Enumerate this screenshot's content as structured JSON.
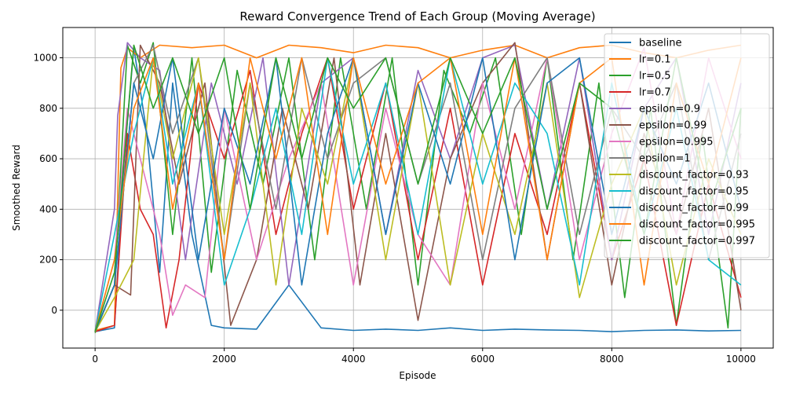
{
  "chart_data": {
    "type": "line",
    "title": "Reward Convergence Trend of Each Group (Moving Average)",
    "xlabel": "Episode",
    "ylabel": "Smoothed Reward",
    "xlim": [
      -500,
      10500
    ],
    "ylim": [
      -150,
      1120
    ],
    "xticks": [
      0,
      2000,
      4000,
      6000,
      8000,
      10000
    ],
    "yticks": [
      0,
      200,
      400,
      600,
      800,
      1000
    ],
    "grid": true,
    "legend_position": "top-right",
    "series": [
      {
        "name": "baseline",
        "color": "#1f77b4",
        "x": [
          0,
          300,
          450,
          600,
          800,
          1000,
          1200,
          1500,
          1800,
          2000,
          2500,
          3000,
          3500,
          4000,
          4500,
          5000,
          5500,
          6000,
          6500,
          7000,
          7500,
          8000,
          8500,
          9000,
          9500,
          10000
        ],
        "values": [
          -85,
          -70,
          600,
          1040,
          700,
          150,
          900,
          300,
          -60,
          -70,
          -75,
          100,
          -70,
          -80,
          -75,
          -80,
          -70,
          -80,
          -75,
          -78,
          -80,
          -85,
          -80,
          -78,
          -82,
          -80
        ]
      },
      {
        "name": "lr=0.1",
        "color": "#ff7f0e",
        "x": [
          0,
          300,
          400,
          500,
          700,
          1000,
          1500,
          2000,
          2500,
          3000,
          3500,
          4000,
          4500,
          5000,
          5500,
          6000,
          6500,
          7000,
          7500,
          8000,
          8500,
          9000,
          9500,
          10000
        ],
        "values": [
          -80,
          -60,
          960,
          1040,
          1000,
          1050,
          1040,
          1050,
          1000,
          1050,
          1040,
          1020,
          1050,
          1040,
          1000,
          1030,
          1050,
          1000,
          1040,
          1050,
          1020,
          1000,
          1030,
          1050
        ]
      },
      {
        "name": "lr=0.5",
        "color": "#2ca02c",
        "x": [
          0,
          300,
          500,
          700,
          900,
          1200,
          1500,
          1800,
          2200,
          2600,
          3000,
          3400,
          3800,
          4200,
          4600,
          5000,
          5400,
          5800,
          6200,
          6600,
          7000,
          7400,
          7800,
          8200,
          8600,
          9000,
          9400,
          9800,
          10000
        ],
        "values": [
          -90,
          100,
          1050,
          900,
          1060,
          300,
          1000,
          150,
          950,
          500,
          1000,
          200,
          1000,
          400,
          1000,
          100,
          950,
          700,
          1000,
          300,
          1000,
          200,
          900,
          50,
          800,
          -60,
          700,
          -70,
          800
        ]
      },
      {
        "name": "lr=0.7",
        "color": "#d62728",
        "x": [
          0,
          300,
          500,
          700,
          900,
          1100,
          1300,
          1600,
          2000,
          2400,
          2800,
          3200,
          3600,
          4000,
          4500,
          5000,
          5500,
          6000,
          6500,
          7000,
          7500,
          8000,
          8500,
          9000,
          9500,
          10000
        ],
        "values": [
          -85,
          -60,
          700,
          400,
          300,
          -70,
          200,
          900,
          600,
          950,
          300,
          700,
          1000,
          400,
          900,
          200,
          800,
          100,
          700,
          300,
          900,
          200,
          600,
          -60,
          500,
          50
        ]
      },
      {
        "name": "epsilon=0.9",
        "color": "#9467bd",
        "x": [
          0,
          300,
          350,
          500,
          700,
          1000,
          1400,
          1800,
          2200,
          2600,
          3000,
          3500,
          4000,
          4500,
          5000,
          5500,
          6000,
          6500,
          7000,
          7500,
          8000,
          8500,
          9000,
          9500,
          10000
        ],
        "values": [
          -85,
          400,
          770,
          1060,
          1000,
          950,
          200,
          900,
          500,
          1000,
          100,
          900,
          1000,
          300,
          950,
          600,
          1000,
          1050,
          400,
          1000,
          200,
          800,
          1000,
          300,
          900
        ]
      },
      {
        "name": "epsilon=0.99",
        "color": "#8c564b",
        "x": [
          0,
          300,
          550,
          700,
          1000,
          1300,
          1700,
          2100,
          2500,
          2900,
          3300,
          3700,
          4100,
          4500,
          5000,
          5500,
          6000,
          6500,
          7000,
          7500,
          8000,
          8500,
          9000,
          9500,
          10000
        ],
        "values": [
          -85,
          100,
          60,
          1050,
          900,
          500,
          900,
          -60,
          200,
          800,
          400,
          1000,
          100,
          700,
          -40,
          600,
          900,
          1060,
          200,
          900,
          100,
          700,
          300,
          800,
          0
        ]
      },
      {
        "name": "epsilon=0.995",
        "color": "#e377c2",
        "x": [
          0,
          300,
          500,
          700,
          1000,
          1200,
          1400,
          1700,
          2000,
          2500,
          3000,
          3500,
          4000,
          4500,
          5000,
          5500,
          6000,
          6500,
          7000,
          7500,
          8000,
          8500,
          9000,
          9500,
          10000
        ],
        "values": [
          -85,
          200,
          800,
          600,
          300,
          -20,
          100,
          50,
          800,
          200,
          600,
          900,
          100,
          800,
          300,
          100,
          900,
          400,
          1000,
          200,
          700,
          1040,
          300,
          1000,
          600
        ]
      },
      {
        "name": "epsilon=1",
        "color": "#7f7f7f",
        "x": [
          0,
          300,
          600,
          900,
          1200,
          1600,
          2000,
          2400,
          2800,
          3200,
          3600,
          4000,
          4500,
          5000,
          5500,
          6000,
          6500,
          7000,
          7500,
          8000,
          8500,
          9000,
          9500,
          10000
        ],
        "values": [
          -85,
          100,
          900,
          1050,
          700,
          1000,
          200,
          900,
          400,
          1000,
          600,
          900,
          1000,
          500,
          900,
          200,
          800,
          1000,
          300,
          800,
          600,
          900,
          200,
          700
        ]
      },
      {
        "name": "discount_factor=0.93",
        "color": "#bcbd22",
        "x": [
          0,
          300,
          600,
          900,
          1200,
          1600,
          2000,
          2400,
          2800,
          3200,
          3600,
          4000,
          4500,
          5000,
          5500,
          6000,
          6500,
          7000,
          7500,
          8000,
          8500,
          9000,
          9500,
          10000
        ],
        "values": [
          -85,
          50,
          200,
          1000,
          600,
          1000,
          300,
          900,
          100,
          800,
          500,
          1000,
          200,
          900,
          100,
          700,
          300,
          900,
          50,
          500,
          800,
          100,
          600,
          300
        ]
      },
      {
        "name": "discount_factor=0.95",
        "color": "#17becf",
        "x": [
          0,
          300,
          600,
          900,
          1200,
          1600,
          2000,
          2400,
          2800,
          3200,
          3600,
          4000,
          4500,
          5000,
          5500,
          6000,
          6500,
          7000,
          7500,
          8000,
          8500,
          9000,
          9500,
          10000
        ],
        "values": [
          -85,
          300,
          700,
          1000,
          500,
          900,
          100,
          400,
          800,
          300,
          1000,
          500,
          900,
          300,
          1000,
          500,
          900,
          700,
          100,
          900,
          300,
          800,
          200,
          100
        ]
      },
      {
        "name": "discount_factor=0.99",
        "color": "#1f77b4",
        "x": [
          0,
          300,
          600,
          900,
          1200,
          1600,
          2000,
          2400,
          2800,
          3200,
          3600,
          4000,
          4500,
          5000,
          5500,
          6000,
          6500,
          7000,
          7500,
          8000,
          8500,
          9000,
          9500,
          10000
        ],
        "values": [
          -85,
          100,
          900,
          600,
          1000,
          200,
          800,
          500,
          1000,
          100,
          700,
          1000,
          300,
          900,
          500,
          1000,
          200,
          900,
          1000,
          300,
          800,
          500,
          900,
          400
        ]
      },
      {
        "name": "discount_factor=0.995",
        "color": "#ff7f0e",
        "x": [
          0,
          300,
          600,
          900,
          1200,
          1600,
          2000,
          2400,
          2800,
          3200,
          3600,
          4000,
          4500,
          5000,
          5500,
          6000,
          6500,
          7000,
          7500,
          8000,
          8500,
          9000,
          9500,
          10000
        ],
        "values": [
          -85,
          200,
          800,
          1000,
          400,
          900,
          200,
          1000,
          600,
          1000,
          300,
          1000,
          500,
          900,
          1000,
          300,
          1000,
          200,
          900,
          1000,
          100,
          900,
          500,
          1000
        ]
      },
      {
        "name": "discount_factor=0.997",
        "color": "#2ca02c",
        "x": [
          0,
          300,
          600,
          900,
          1200,
          1600,
          2000,
          2400,
          2800,
          3200,
          3600,
          4000,
          4500,
          5000,
          5500,
          6000,
          6500,
          7000,
          7500,
          8000,
          8500,
          9000,
          9500,
          10000
        ],
        "values": [
          -85,
          150,
          1050,
          800,
          1000,
          700,
          1000,
          400,
          1000,
          600,
          1000,
          800,
          1000,
          500,
          1000,
          700,
          1000,
          400,
          900,
          800,
          300,
          1000,
          400,
          800
        ]
      }
    ]
  }
}
